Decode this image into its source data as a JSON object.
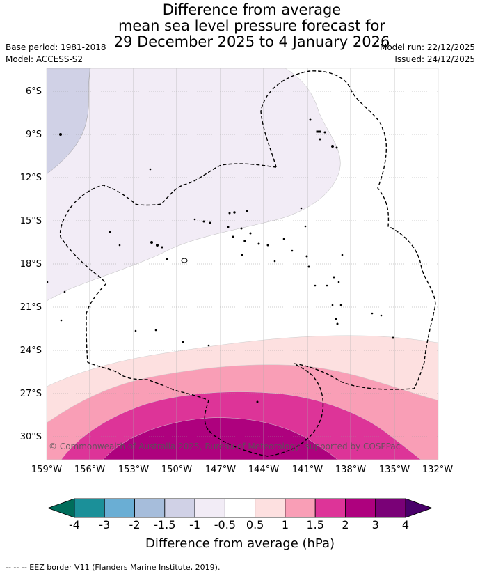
{
  "title": {
    "line1": "Difference from average",
    "line2": "mean sea level pressure forecast for",
    "line3": "29 December 2025 to 4 January 2026"
  },
  "base_period": "Base period: 1981-2018",
  "model": "Model: ACCESS-S2",
  "model_run": "Model run: 22/12/2025",
  "issued": "Issued: 24/12/2025",
  "copyright": "© Commonwealth of Australia 2025, Bureau of Meteorology, supported by COSPPac",
  "latitudes": [
    "6°S",
    "9°S",
    "12°S",
    "15°S",
    "18°S",
    "21°S",
    "24°S",
    "27°S",
    "30°S"
  ],
  "longitudes": [
    "159°W",
    "156°W",
    "153°W",
    "150°W",
    "147°W",
    "144°W",
    "141°W",
    "138°W",
    "135°W",
    "132°W"
  ],
  "colorbar": {
    "title": "Difference from average (hPa)",
    "ticks": [
      "-4",
      "-3",
      "-2",
      "-1.5",
      "-1",
      "-0.5",
      "0.5",
      "1",
      "1.5",
      "2",
      "3",
      "4"
    ],
    "colors": [
      "#006d5b",
      "#1b9099",
      "#6aaed4",
      "#a6bddb",
      "#d0d1e6",
      "#f2ecf6",
      "#ffffff",
      "#fde0e0",
      "#f99eb6",
      "#dd3498",
      "#ae017e",
      "#7a0177",
      "#49006a"
    ]
  },
  "footnote": "-- -- -- EEZ border V11 (Flanders Marine Institute, 2019)."
}
